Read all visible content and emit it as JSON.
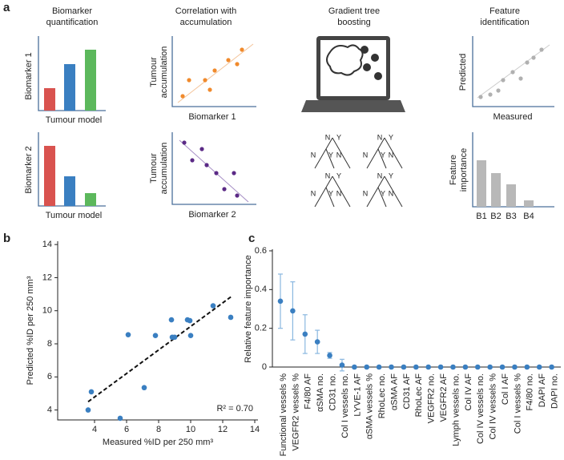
{
  "panel_labels": [
    "a",
    "b",
    "c"
  ],
  "schematic": {
    "col1_title": [
      "Biomarker",
      "quantification"
    ],
    "col2_title": [
      "Correlation with",
      "accumulation"
    ],
    "col3_title": [
      "Gradient tree",
      "boosting"
    ],
    "col4_title": [
      "Feature",
      "identification"
    ],
    "biomarker_1": "Biomarker 1",
    "biomarker_2": "Biomarker 2",
    "tumour_model": "Tumour model",
    "tumour_accumulation": [
      "Tumour",
      "accumulation"
    ],
    "predicted": "Predicted",
    "measured": "Measured",
    "feature_importance": [
      "Feature",
      "importance"
    ],
    "bar_labels": [
      "B1",
      "B2",
      "B3",
      "B4"
    ],
    "tree_labels": [
      "N",
      "Y"
    ]
  },
  "chart_data": [
    {
      "type": "scatter",
      "x_label": "Measured %ID per 250 mm³",
      "y_label": "Predicted %ID per 250 mm³",
      "annotation": "R² = 0.70",
      "color": "#3a7fc1",
      "x": [
        3.6,
        3.8,
        5.6,
        6.1,
        7.1,
        7.8,
        8.8,
        8.85,
        9.0,
        9.8,
        9.95,
        10.0,
        11.4,
        12.5
      ],
      "y": [
        4.0,
        5.1,
        3.5,
        8.55,
        5.35,
        8.5,
        9.45,
        8.4,
        8.4,
        9.45,
        9.4,
        8.5,
        10.3,
        9.6
      ],
      "fit": {
        "x": [
          3.6,
          12.6
        ],
        "y": [
          4.5,
          10.9
        ]
      },
      "xlim": [
        1.7,
        14.2
      ],
      "ylim": [
        3.4,
        14.2
      ],
      "xticks": [
        4,
        6,
        8,
        10,
        12,
        14
      ],
      "yticks": [
        4,
        6,
        8,
        10,
        12,
        14
      ]
    },
    {
      "type": "errorbar",
      "y_label": "Relative feature importance",
      "color": "#3a7fc1",
      "error_color": "#8ab8e0",
      "categories": [
        "Functional vessels %",
        "VEGFR2 vessels %",
        "F4/80 AF",
        "αSMA no.",
        "CD31 no.",
        "Col I vessels no.",
        "LYVE-1 AF",
        "αSMA vessels %",
        "RhoLec no.",
        "αSMA AF",
        "CD31 AF",
        "RhoLec AF",
        "VEGFR2 no.",
        "VEGFR2 AF",
        "Lymph vessels no.",
        "Col IV AF",
        "Col IV vessels no.",
        "Col IV vessels %",
        "Col I AF",
        "Col I vessels %",
        "F4/80 no.",
        "DAPI AF",
        "DAPI no."
      ],
      "values": [
        0.34,
        0.29,
        0.17,
        0.13,
        0.06,
        0.01,
        0,
        0,
        0,
        0,
        0,
        0,
        0,
        0,
        0,
        0,
        0,
        0,
        0,
        0,
        0,
        0,
        0
      ],
      "errors": [
        0.14,
        0.15,
        0.1,
        0.06,
        0.015,
        0.03,
        0,
        0,
        0,
        0,
        0,
        0,
        0,
        0,
        0,
        0,
        0,
        0,
        0,
        0,
        0,
        0,
        0
      ],
      "ylim": [
        0,
        0.6
      ],
      "yticks": [
        0,
        0.2,
        0.4,
        0.6
      ]
    }
  ]
}
